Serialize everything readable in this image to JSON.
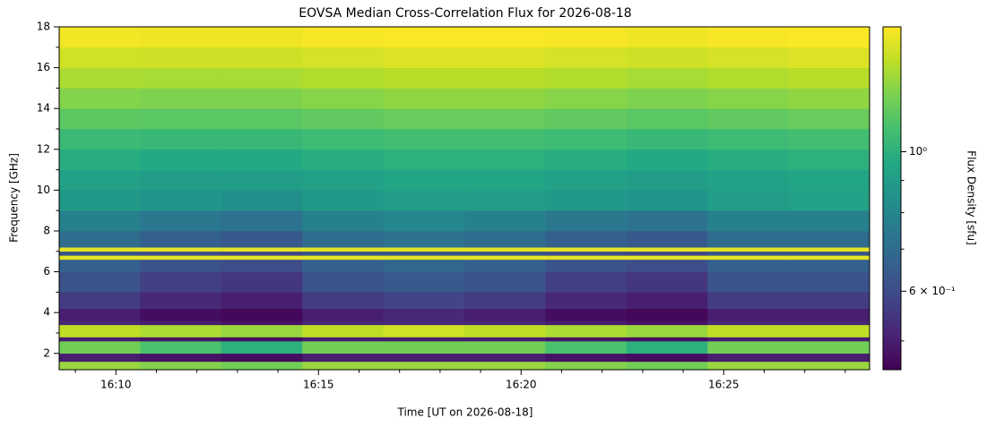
{
  "chart_data": {
    "type": "heatmap",
    "title": "EOVSA Median Cross-Correlation Flux for 2026-08-18",
    "x_label": "Time [UT on 2026-08-18]",
    "y_label": "Frequency [GHz]",
    "colorbar_label": "Flux Density [sfu]",
    "colormap": "viridis",
    "color_scale": "log",
    "xlim": [
      968.6,
      988.6
    ],
    "xticks": [
      {
        "value": 970,
        "label": "16:10"
      },
      {
        "value": 975,
        "label": "16:15"
      },
      {
        "value": 980,
        "label": "16:20"
      },
      {
        "value": 985,
        "label": "16:25"
      }
    ],
    "xminor_ticks": [
      969,
      971,
      972,
      973,
      974,
      976,
      977,
      978,
      979,
      981,
      982,
      983,
      984,
      986,
      987,
      988
    ],
    "ylim": [
      1.2,
      18
    ],
    "yticks": [
      2,
      4,
      6,
      8,
      10,
      12,
      14,
      16,
      18
    ],
    "yminor_ticks": [
      3,
      5,
      7,
      9,
      11,
      13,
      15,
      17
    ],
    "clim": [
      0.45,
      1.58
    ],
    "cticks": [
      {
        "value": 0.6,
        "label": "6 × 10⁻¹"
      },
      {
        "value": 1,
        "label": "10⁰"
      }
    ],
    "cminor_ticks": [
      0.5,
      0.7,
      0.8,
      0.9
    ],
    "x_edges": [
      968.6,
      970.6,
      972.6,
      974.6,
      976.6,
      978.6,
      980.6,
      982.6,
      984.6,
      986.6,
      988.6
    ],
    "y_edges": [
      1.2,
      1.6,
      2.0,
      2.6,
      2.8,
      3.4,
      3.6,
      4.2,
      5.0,
      6.0,
      6.6,
      6.8,
      7.0,
      7.2,
      8.0,
      9.0,
      10,
      11,
      12,
      13,
      14,
      15,
      16,
      17,
      18
    ],
    "z": [
      [
        1.3,
        1.25,
        1.2,
        1.3,
        1.3,
        1.3,
        1.25,
        1.2,
        1.3,
        1.3
      ],
      [
        0.5,
        0.48,
        0.47,
        0.5,
        0.5,
        0.5,
        0.48,
        0.47,
        0.5,
        0.5
      ],
      [
        1.2,
        1.1,
        1.0,
        1.2,
        1.2,
        1.2,
        1.1,
        1.0,
        1.2,
        1.2
      ],
      [
        0.5,
        0.48,
        0.47,
        0.5,
        0.5,
        0.5,
        0.48,
        0.47,
        0.5,
        0.5
      ],
      [
        1.4,
        1.35,
        1.3,
        1.4,
        1.45,
        1.4,
        1.35,
        1.3,
        1.4,
        1.4
      ],
      [
        0.52,
        0.5,
        0.48,
        0.52,
        0.52,
        0.52,
        0.5,
        0.48,
        0.52,
        0.52
      ],
      [
        0.5,
        0.47,
        0.46,
        0.5,
        0.52,
        0.5,
        0.47,
        0.46,
        0.5,
        0.5
      ],
      [
        0.56,
        0.52,
        0.5,
        0.56,
        0.58,
        0.56,
        0.52,
        0.5,
        0.56,
        0.56
      ],
      [
        0.62,
        0.57,
        0.55,
        0.62,
        0.64,
        0.62,
        0.57,
        0.55,
        0.62,
        0.62
      ],
      [
        0.66,
        0.62,
        0.6,
        0.66,
        0.68,
        0.66,
        0.62,
        0.6,
        0.66,
        0.66
      ],
      [
        1.5,
        1.5,
        1.5,
        1.5,
        1.5,
        1.5,
        1.5,
        1.5,
        1.5,
        1.5
      ],
      [
        0.62,
        0.6,
        0.58,
        0.62,
        0.62,
        0.62,
        0.6,
        0.58,
        0.62,
        0.62
      ],
      [
        1.5,
        1.5,
        1.5,
        1.5,
        1.5,
        1.5,
        1.5,
        1.5,
        1.5,
        1.5
      ],
      [
        0.7,
        0.66,
        0.64,
        0.7,
        0.72,
        0.7,
        0.66,
        0.64,
        0.7,
        0.7
      ],
      [
        0.78,
        0.74,
        0.72,
        0.78,
        0.8,
        0.78,
        0.74,
        0.72,
        0.78,
        0.78
      ],
      [
        0.88,
        0.86,
        0.84,
        0.88,
        0.9,
        0.9,
        0.88,
        0.86,
        0.9,
        0.92
      ],
      [
        0.92,
        0.9,
        0.9,
        0.92,
        0.94,
        0.94,
        0.92,
        0.9,
        0.92,
        0.94
      ],
      [
        0.98,
        0.96,
        0.96,
        0.98,
        1.0,
        1.0,
        0.98,
        0.96,
        0.98,
        1.0
      ],
      [
        1.05,
        1.04,
        1.04,
        1.06,
        1.08,
        1.08,
        1.06,
        1.04,
        1.06,
        1.08
      ],
      [
        1.15,
        1.14,
        1.14,
        1.16,
        1.18,
        1.18,
        1.16,
        1.14,
        1.16,
        1.18
      ],
      [
        1.25,
        1.24,
        1.24,
        1.26,
        1.28,
        1.28,
        1.26,
        1.24,
        1.26,
        1.28
      ],
      [
        1.35,
        1.34,
        1.34,
        1.36,
        1.38,
        1.38,
        1.36,
        1.34,
        1.36,
        1.38
      ],
      [
        1.45,
        1.44,
        1.44,
        1.46,
        1.48,
        1.48,
        1.46,
        1.44,
        1.46,
        1.48
      ],
      [
        1.55,
        1.54,
        1.54,
        1.56,
        1.57,
        1.57,
        1.56,
        1.54,
        1.56,
        1.57
      ]
    ]
  }
}
